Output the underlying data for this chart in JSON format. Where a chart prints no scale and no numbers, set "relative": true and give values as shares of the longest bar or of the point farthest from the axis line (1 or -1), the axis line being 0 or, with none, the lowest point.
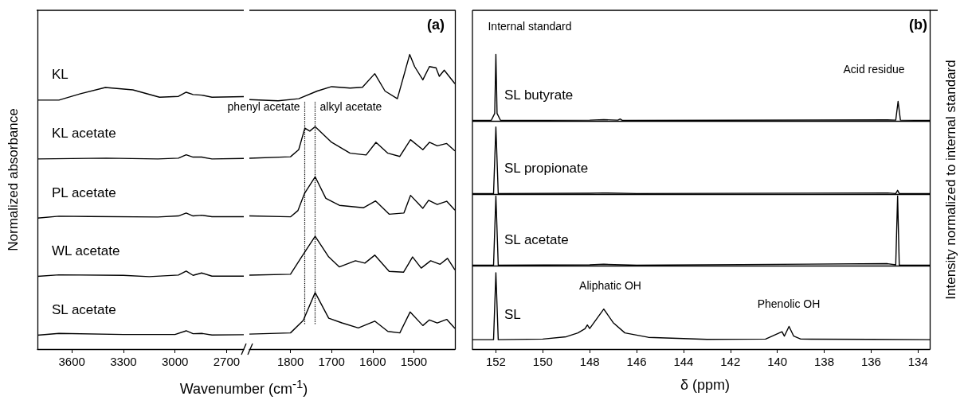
{
  "chart_data": [
    {
      "type": "line",
      "ylabel": "Normalized absorbance",
      "xlim": [
        3800,
        2600
      ],
      "xticks": [
        3600,
        3300,
        3000,
        2700
      ],
      "relative": true,
      "series": [
        {
          "name": "KL",
          "color": "#000000",
          "x": [
            3800,
            3675,
            3550,
            3405,
            3245,
            3090,
            2980,
            2935,
            2895,
            2845,
            2785,
            2600
          ],
          "values": [
            0.952,
            0.952,
            0.976,
            1.0,
            0.991,
            0.963,
            0.966,
            0.982,
            0.973,
            0.971,
            0.963,
            0.965
          ]
        },
        {
          "name": "KL acetate",
          "color": "#000000",
          "x": [
            3800,
            3400,
            3100,
            2980,
            2935,
            2895,
            2845,
            2785,
            2600
          ],
          "values": [
            0.727,
            0.73,
            0.727,
            0.73,
            0.743,
            0.734,
            0.734,
            0.727,
            0.729
          ]
        },
        {
          "name": "PL acetate",
          "color": "#000000",
          "x": [
            3800,
            3675,
            3500,
            3100,
            2980,
            2935,
            2895,
            2845,
            2785,
            2600
          ],
          "values": [
            0.501,
            0.508,
            0.507,
            0.505,
            0.509,
            0.52,
            0.509,
            0.512,
            0.506,
            0.506
          ]
        },
        {
          "name": "WL acetate",
          "color": "#000000",
          "x": [
            3800,
            3675,
            3300,
            3150,
            2980,
            2935,
            2895,
            2845,
            2785,
            2600
          ],
          "values": [
            0.278,
            0.284,
            0.282,
            0.277,
            0.283,
            0.298,
            0.282,
            0.291,
            0.279,
            0.279
          ]
        },
        {
          "name": "SL acetate",
          "color": "#000000",
          "x": [
            3800,
            3675,
            3300,
            3000,
            2935,
            2895,
            2845,
            2785,
            2600
          ],
          "values": [
            0.053,
            0.06,
            0.056,
            0.056,
            0.07,
            0.059,
            0.06,
            0.054,
            0.055
          ]
        }
      ]
    },
    {
      "type": "line",
      "title": "(a)",
      "xlabel": "Wavenumber (cm$^{-1}$)",
      "xlim": [
        1900,
        1400
      ],
      "xticks": [
        1800,
        1700,
        1600,
        1500
      ],
      "relative": true,
      "ref_lines": [
        {
          "axis": "x",
          "value": 1765,
          "label": "phenyl acetate",
          "line_style": "dotted",
          "color": "#000000"
        },
        {
          "axis": "x",
          "value": 1740,
          "label": "alkyl acetate",
          "line_style": "dotted",
          "color": "#000000"
        }
      ],
      "series": [
        {
          "color": "#000000",
          "x": [
            1900,
            1830,
            1780,
            1735,
            1700,
            1655,
            1625,
            1595,
            1570,
            1540,
            1510,
            1498,
            1478,
            1462,
            1446,
            1438,
            1426,
            1400
          ],
          "values": [
            0.847,
            0.843,
            0.85,
            0.876,
            0.891,
            0.886,
            0.889,
            0.935,
            0.876,
            0.85,
            1.0,
            0.959,
            0.914,
            0.959,
            0.955,
            0.926,
            0.947,
            0.901
          ]
        },
        {
          "color": "#000000",
          "x": [
            1900,
            1800,
            1780,
            1765,
            1753,
            1740,
            1700,
            1655,
            1616,
            1592,
            1563,
            1534,
            1508,
            1478,
            1462,
            1443,
            1420,
            1400
          ],
          "values": [
            0.648,
            0.653,
            0.677,
            0.75,
            0.74,
            0.755,
            0.702,
            0.665,
            0.659,
            0.702,
            0.665,
            0.654,
            0.711,
            0.677,
            0.702,
            0.69,
            0.698,
            0.673
          ]
        },
        {
          "color": "#000000",
          "x": [
            1900,
            1800,
            1782,
            1766,
            1740,
            1714,
            1681,
            1622,
            1593,
            1560,
            1524,
            1508,
            1478,
            1464,
            1443,
            1420,
            1400
          ],
          "values": [
            0.452,
            0.449,
            0.47,
            0.528,
            0.585,
            0.512,
            0.488,
            0.48,
            0.503,
            0.458,
            0.462,
            0.522,
            0.478,
            0.505,
            0.491,
            0.502,
            0.472
          ]
        },
        {
          "color": "#000000",
          "x": [
            1900,
            1800,
            1773,
            1740,
            1707,
            1681,
            1642,
            1619,
            1595,
            1560,
            1525,
            1503,
            1482,
            1459,
            1436,
            1418,
            1400
          ],
          "values": [
            0.251,
            0.254,
            0.313,
            0.383,
            0.313,
            0.279,
            0.3,
            0.292,
            0.319,
            0.264,
            0.261,
            0.313,
            0.275,
            0.3,
            0.288,
            0.308,
            0.269
          ]
        },
        {
          "color": "#000000",
          "x": [
            1900,
            1800,
            1769,
            1740,
            1707,
            1675,
            1635,
            1595,
            1563,
            1534,
            1509,
            1478,
            1462,
            1443,
            1420,
            1400
          ],
          "values": [
            0.051,
            0.055,
            0.097,
            0.192,
            0.105,
            0.089,
            0.072,
            0.095,
            0.06,
            0.055,
            0.126,
            0.08,
            0.099,
            0.089,
            0.101,
            0.07
          ]
        }
      ]
    },
    {
      "type": "line",
      "title": "(b)",
      "xlabel": "δ (ppm)",
      "ylabel": "Intensity normalized to internal standard",
      "xlim": [
        153,
        133.5
      ],
      "xticks": [
        152,
        150,
        148,
        146,
        144,
        142,
        140,
        138,
        136,
        134
      ],
      "relative": true,
      "ref_lines": [
        {
          "axis": "y",
          "value": 0.775,
          "color": "#000000",
          "line_style": "solid"
        },
        {
          "axis": "y",
          "value": 0.526,
          "color": "#000000",
          "line_style": "solid"
        },
        {
          "axis": "y",
          "value": 0.283,
          "color": "#000000",
          "line_style": "solid"
        }
      ],
      "annotations": [
        "Internal standard",
        "Acid residue",
        "Aliphatic OH",
        "Phenolic OH"
      ],
      "series": [
        {
          "name": "SL butyrate",
          "color": "#000000",
          "x": [
            153,
            152.2,
            152.05,
            152,
            151.95,
            151.8,
            148,
            147.4,
            146.8,
            146.7,
            146.6,
            135.3,
            134.95,
            134.85,
            134.75,
            133.5
          ],
          "values": [
            0.776,
            0.776,
            0.8,
            1.0,
            0.8,
            0.776,
            0.777,
            0.779,
            0.777,
            0.781,
            0.776,
            0.778,
            0.777,
            0.841,
            0.777,
            0.776
          ]
        },
        {
          "name": "SL propionate",
          "color": "#000000",
          "x": [
            153,
            152.1,
            152,
            151.9,
            148,
            147.4,
            146,
            135.3,
            134.95,
            134.87,
            134.8,
            133.5
          ],
          "values": [
            0.528,
            0.528,
            0.754,
            0.528,
            0.529,
            0.53,
            0.528,
            0.53,
            0.528,
            0.539,
            0.528,
            0.528
          ]
        },
        {
          "name": "SL acetate",
          "color": "#000000",
          "x": [
            153,
            152.1,
            152,
            151.9,
            148,
            147.4,
            146,
            135.3,
            134.95,
            134.87,
            134.8,
            133.5
          ],
          "values": [
            0.285,
            0.285,
            0.52,
            0.285,
            0.286,
            0.288,
            0.285,
            0.29,
            0.286,
            0.52,
            0.285,
            0.285
          ]
        },
        {
          "name": "SL",
          "color": "#000000",
          "x": [
            153,
            152.1,
            152,
            151.9,
            150,
            149,
            148.5,
            148.2,
            148.1,
            148,
            147.4,
            147,
            146.5,
            145.5,
            143,
            140.5,
            139.8,
            139.7,
            139.5,
            139.3,
            139,
            136,
            133.5
          ],
          "values": [
            0.032,
            0.032,
            0.259,
            0.032,
            0.034,
            0.042,
            0.055,
            0.069,
            0.082,
            0.07,
            0.136,
            0.09,
            0.055,
            0.04,
            0.033,
            0.034,
            0.059,
            0.044,
            0.077,
            0.044,
            0.034,
            0.033,
            0.032
          ]
        }
      ]
    }
  ]
}
